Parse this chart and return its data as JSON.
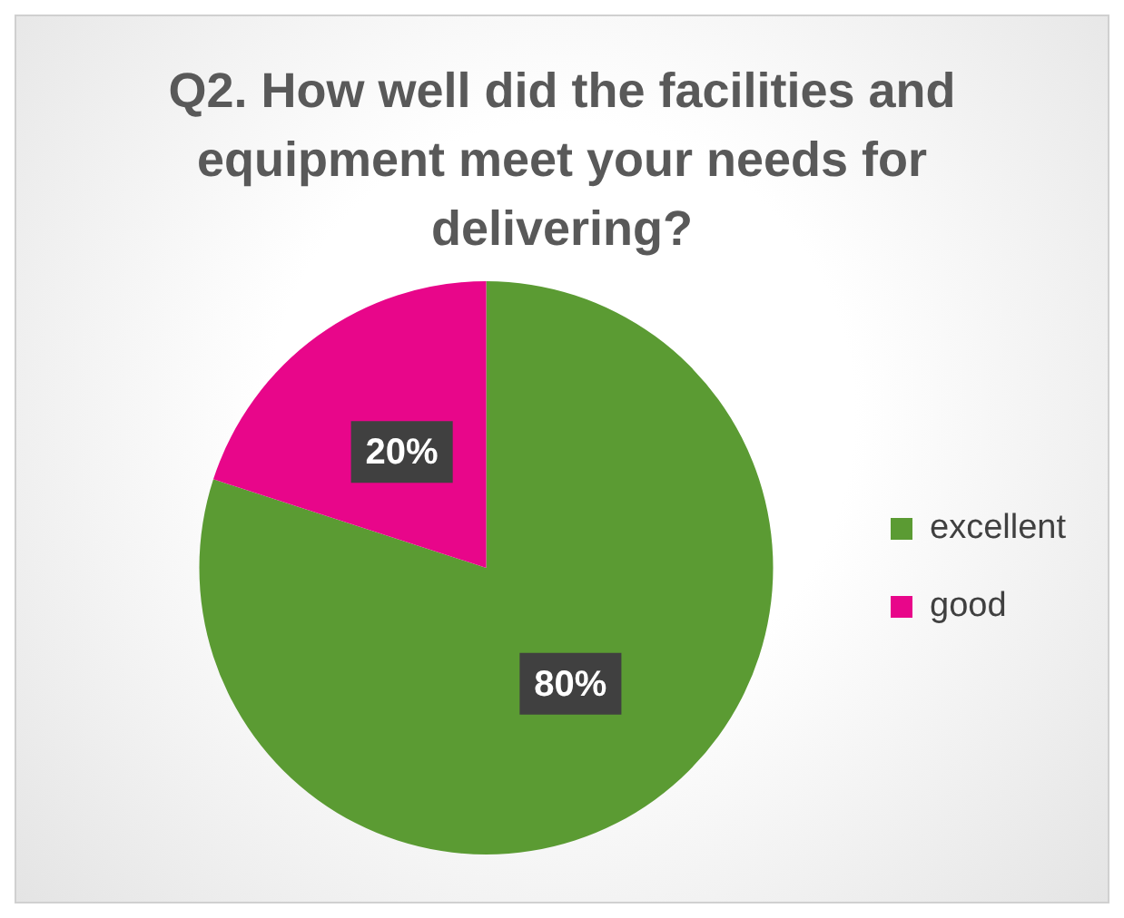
{
  "chart_data": {
    "type": "pie",
    "title": "Q2. How well did the facilities and equipment meet your needs for delivering?",
    "categories": [
      "excellent",
      "good"
    ],
    "values": [
      80,
      20
    ],
    "colors": [
      "#5b9b33",
      "#e8068a"
    ],
    "value_labels": [
      "80%",
      "20%"
    ],
    "legend": "right"
  }
}
